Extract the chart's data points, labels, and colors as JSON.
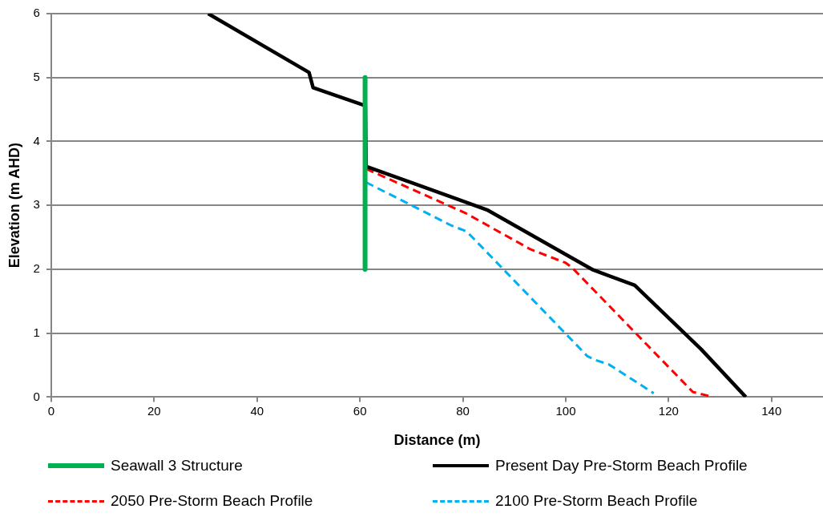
{
  "chart_data": {
    "type": "line",
    "xlabel": "Distance (m)",
    "ylabel": "Elevation (m AHD)",
    "xlim": [
      0,
      150
    ],
    "xticks": [
      0,
      20,
      40,
      60,
      80,
      100,
      120,
      140
    ],
    "ylim": [
      0,
      6
    ],
    "yticks": [
      0,
      1,
      2,
      3,
      4,
      5,
      6
    ],
    "grid": "y",
    "legend": "bottom",
    "marker": "none",
    "series": [
      {
        "name": "Seawall 3 Structure",
        "color": "#00b050",
        "line_style": "solid",
        "x": [
          61,
          61
        ],
        "values": [
          2,
          5
        ]
      },
      {
        "name": "Present Day Pre-Storm Beach Profile",
        "color": "#000000",
        "line_style": "solid",
        "x": [
          30.5,
          50.1,
          50.9,
          61.05,
          61.2,
          84.7,
          105.3,
          113.4,
          126.3,
          135
        ],
        "values": [
          6,
          5.08,
          4.84,
          4.56,
          3.61,
          2.93,
          1.99,
          1.75,
          0.75,
          0
        ]
      },
      {
        "name": "2050 Pre-Storm Beach Profile",
        "color": "#ff0000",
        "line_style": "dashed",
        "x": [
          61.2,
          80.5,
          93.2,
          100,
          101.3,
          124.7,
          128.7
        ],
        "values": [
          3.57,
          2.88,
          2.31,
          2.1,
          2.02,
          0.08,
          0
        ]
      },
      {
        "name": "2100 Pre-Storm Beach Profile",
        "color": "#00b0f0",
        "line_style": "dashed",
        "x": [
          61.2,
          77.9,
          80.5,
          81.5,
          104.2,
          105.8,
          108.4,
          117.1
        ],
        "values": [
          3.36,
          2.68,
          2.6,
          2.53,
          0.64,
          0.58,
          0.51,
          0.06
        ]
      }
    ]
  }
}
